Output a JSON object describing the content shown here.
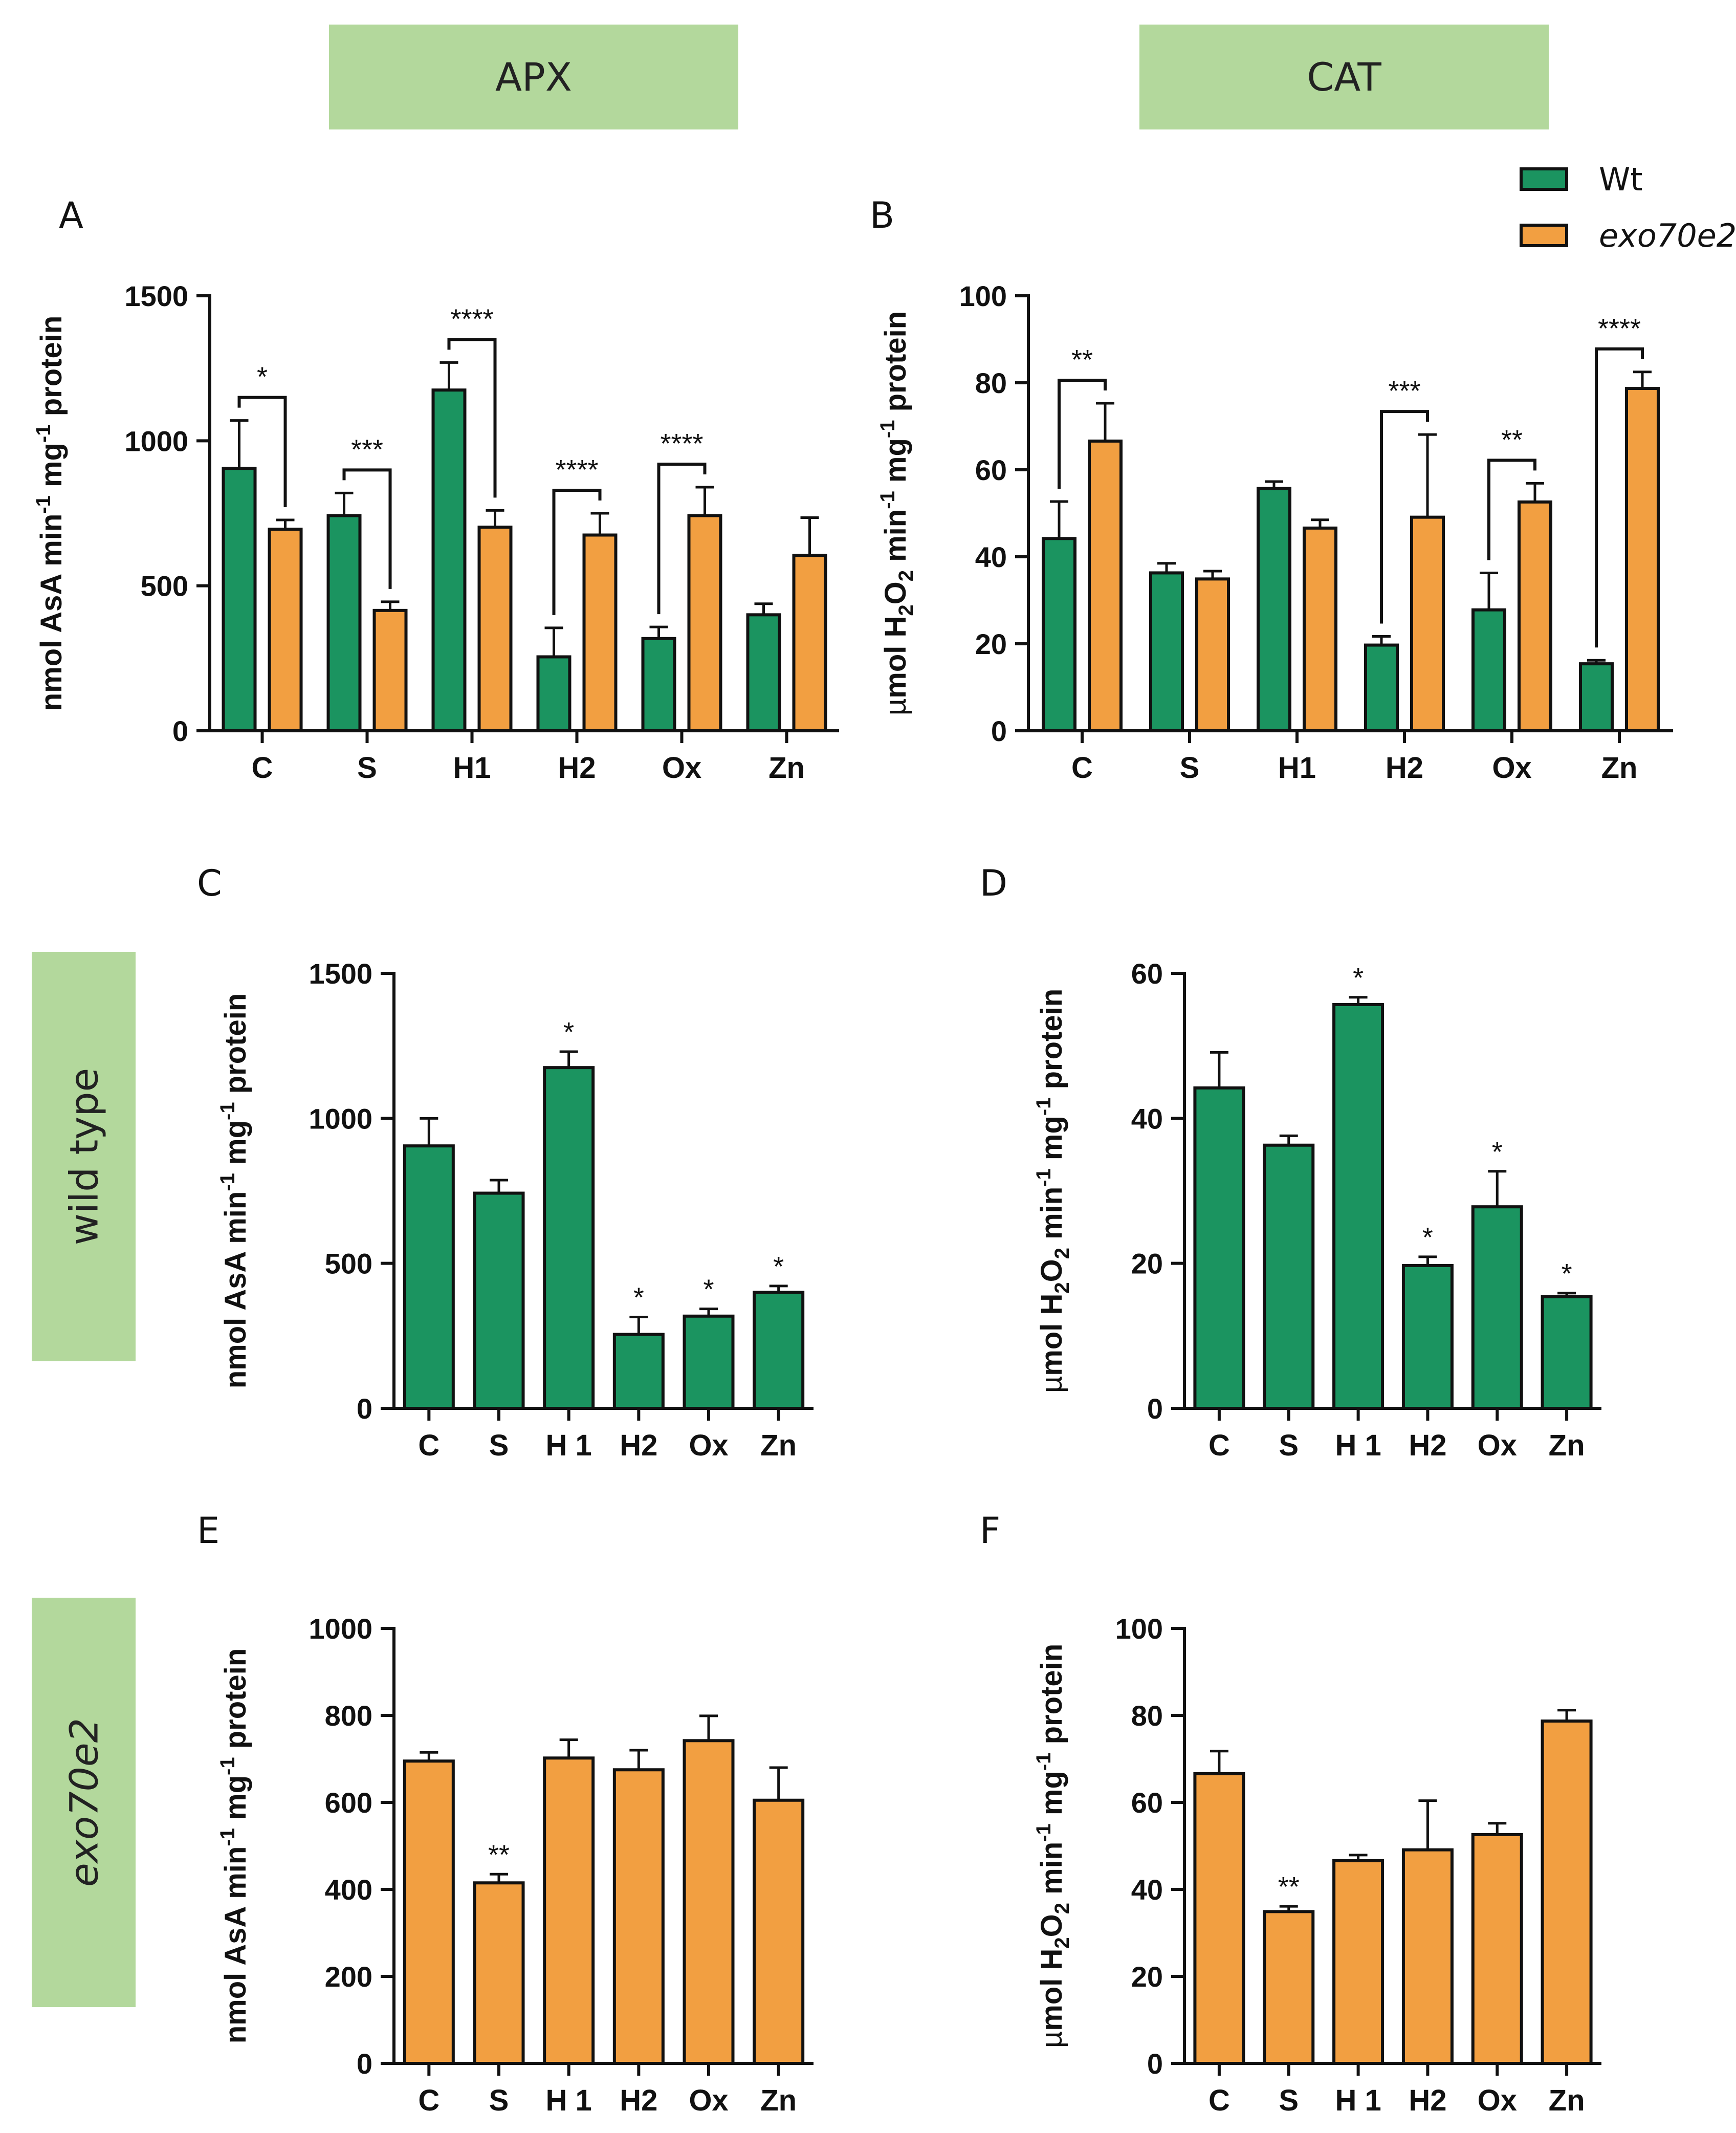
{
  "headers": {
    "apx": "APX",
    "cat": "CAT"
  },
  "side_labels": {
    "wild_type": "wild type",
    "mutant": "exo70e2"
  },
  "panel_labels": {
    "A": "A",
    "B": "B",
    "C": "C",
    "D": "D",
    "E": "E",
    "F": "F"
  },
  "legend": {
    "wt": "Wt",
    "mutant": "exo70e2"
  },
  "colors": {
    "wt": "#1b9460",
    "mutant": "#f29f41",
    "header_bg": "#b3d89c"
  },
  "chart_data": [
    {
      "id": "A",
      "type": "bar",
      "title": "APX",
      "ylabel": "nmol AsA min-1 mg-1 protein",
      "ylabel_parts": {
        "pre": "nmol AsA min",
        "sup1": "-1",
        "mid": " mg",
        "sup2": "-1",
        "post": " protein"
      },
      "ylim": [
        0,
        1500
      ],
      "yticks": [
        0,
        500,
        1000,
        1500
      ],
      "categories": [
        "C",
        "S",
        "H1",
        "H2",
        "Ox",
        "Zn"
      ],
      "series": [
        {
          "name": "Wt",
          "values": [
            905,
            742,
            1175,
            255,
            318,
            400
          ],
          "errors": [
            165,
            78,
            95,
            100,
            40,
            38
          ]
        },
        {
          "name": "exo70e2",
          "values": [
            695,
            415,
            702,
            675,
            742,
            605
          ],
          "errors": [
            32,
            30,
            58,
            75,
            98,
            130
          ]
        }
      ],
      "significance": [
        "*",
        "***",
        "****",
        "****",
        "****",
        ""
      ]
    },
    {
      "id": "B",
      "type": "bar",
      "title": "CAT",
      "ylabel": "µmol H2O2 min-1 mg-1 protein",
      "ylabel_parts": {
        "pre": "µmol H",
        "sub": "2",
        "pre2": "O",
        "sub2": "2",
        "mid0": " min",
        "sup1": "-1",
        "mid": " mg",
        "sup2": "-1",
        "post": " protein"
      },
      "ylim": [
        0,
        100
      ],
      "yticks": [
        0,
        20,
        40,
        60,
        80,
        100
      ],
      "categories": [
        "C",
        "S",
        "H1",
        "H2",
        "Ox",
        "Zn"
      ],
      "series": [
        {
          "name": "Wt",
          "values": [
            44.2,
            36.3,
            55.7,
            19.7,
            27.8,
            15.4
          ],
          "errors": [
            8.5,
            2.2,
            1.6,
            2.0,
            8.5,
            0.8
          ]
        },
        {
          "name": "exo70e2",
          "values": [
            66.6,
            34.9,
            46.6,
            49.1,
            52.6,
            78.7
          ],
          "errors": [
            8.7,
            1.8,
            1.9,
            19.0,
            4.3,
            3.8
          ]
        }
      ],
      "significance": [
        "**",
        "",
        "",
        "***",
        "**",
        "****"
      ]
    },
    {
      "id": "C",
      "type": "bar",
      "ylabel": "nmol AsA min-1 mg-1 protein",
      "ylabel_parts": {
        "pre": "nmol AsA min",
        "sup1": "-1",
        "mid": " mg",
        "sup2": "-1",
        "post": " protein"
      },
      "ylim": [
        0,
        1500
      ],
      "yticks": [
        0,
        500,
        1000,
        1500
      ],
      "categories": [
        "C",
        "S",
        "H 1",
        "H2",
        "Ox",
        "Zn"
      ],
      "series": [
        {
          "name": "Wt",
          "values": [
            905,
            742,
            1175,
            255,
            318,
            400
          ],
          "errors": [
            95,
            45,
            55,
            60,
            25,
            22
          ]
        }
      ],
      "significance": [
        "",
        "",
        "*",
        "*",
        "*",
        "*"
      ]
    },
    {
      "id": "D",
      "type": "bar",
      "ylabel": "µmol H2O2 min-1 mg-1 protein",
      "ylabel_parts": {
        "pre": "µmol H",
        "sub": "2",
        "pre2": "O",
        "sub2": "2",
        "mid0": " min",
        "sup1": "-1",
        "mid": " mg",
        "sup2": "-1",
        "post": " protein"
      },
      "ylim": [
        0,
        60
      ],
      "yticks": [
        0,
        20,
        40,
        60
      ],
      "categories": [
        "C",
        "S",
        "H 1",
        "H2",
        "Ox",
        "Zn"
      ],
      "series": [
        {
          "name": "Wt",
          "values": [
            44.2,
            36.3,
            55.7,
            19.7,
            27.8,
            15.4
          ],
          "errors": [
            4.9,
            1.3,
            1.0,
            1.2,
            4.9,
            0.5
          ]
        }
      ],
      "significance": [
        "",
        "",
        "*",
        "*",
        "*",
        "*"
      ]
    },
    {
      "id": "E",
      "type": "bar",
      "ylabel": "nmol AsA min-1 mg-1 protein",
      "ylabel_parts": {
        "pre": "nmol AsA min",
        "sup1": "-1",
        "mid": " mg",
        "sup2": "-1",
        "post": " protein"
      },
      "ylim": [
        0,
        1000
      ],
      "yticks": [
        0,
        200,
        400,
        600,
        800,
        1000
      ],
      "categories": [
        "C",
        "S",
        "H 1",
        "H2",
        "Ox",
        "Zn"
      ],
      "series": [
        {
          "name": "exo70e2",
          "values": [
            695,
            415,
            702,
            675,
            742,
            605
          ],
          "errors": [
            20,
            20,
            42,
            45,
            57,
            75
          ]
        }
      ],
      "significance": [
        "",
        "**",
        "",
        "",
        "",
        ""
      ]
    },
    {
      "id": "F",
      "type": "bar",
      "ylabel": "µmol H2O2 min-1 mg-1 protein",
      "ylabel_parts": {
        "pre": "µmol H",
        "sub": "2",
        "pre2": "O",
        "sub2": "2",
        "mid0": " min",
        "sup1": "-1",
        "mid": " mg",
        "sup2": "-1",
        "post": " protein"
      },
      "ylim": [
        0,
        100
      ],
      "yticks": [
        0,
        20,
        40,
        60,
        80,
        100
      ],
      "categories": [
        "C",
        "S",
        "H 1",
        "H2",
        "Ox",
        "Zn"
      ],
      "series": [
        {
          "name": "exo70e2",
          "values": [
            66.6,
            34.9,
            46.6,
            49.1,
            52.6,
            78.7
          ],
          "errors": [
            5.2,
            1.2,
            1.3,
            11.3,
            2.6,
            2.5
          ]
        }
      ],
      "significance": [
        "",
        "**",
        "",
        "",
        "",
        ""
      ]
    }
  ]
}
